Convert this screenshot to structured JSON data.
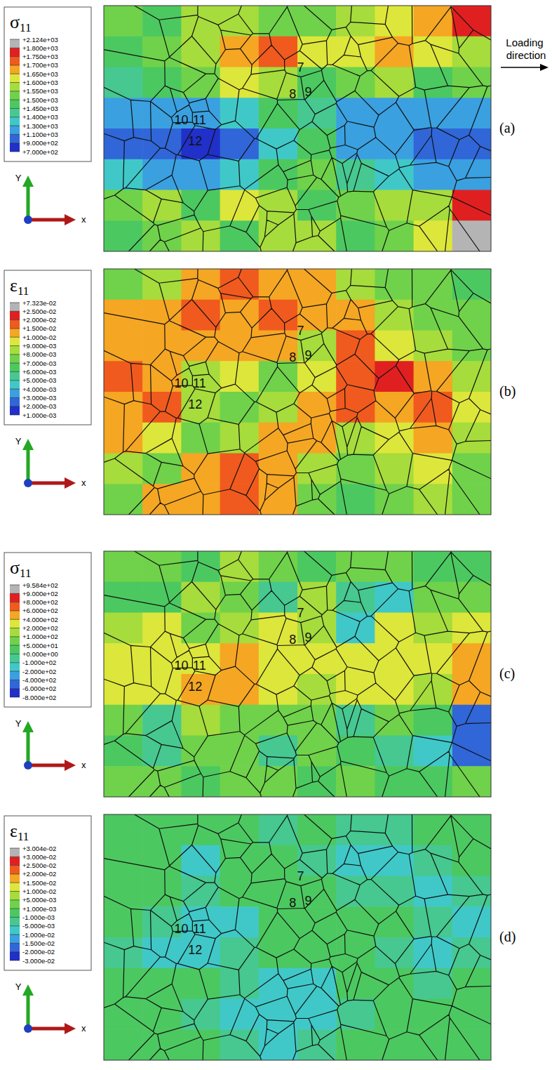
{
  "chart_data": [
    {
      "type": "heatmap",
      "panel": "(a)",
      "title": "σ11",
      "xlabel": "x",
      "ylabel": "Y",
      "annotation": "Loading direction",
      "grain_labels": [
        "7",
        "8",
        "9",
        "10",
        "11",
        "12"
      ],
      "cells": [
        [
          1550,
          1480,
          1580,
          1560,
          1520,
          1550,
          1600,
          1620,
          1680,
          1760
        ],
        [
          1480,
          1520,
          1600,
          1700,
          1720,
          1650,
          1650,
          1700,
          1620,
          1600
        ],
        [
          1450,
          1480,
          1550,
          1650,
          1600,
          1480,
          1550,
          1600,
          1480,
          1520
        ],
        [
          1300,
          1200,
          1150,
          1400,
          1480,
          1450,
          1300,
          1250,
          1200,
          1150
        ],
        [
          1000,
          950,
          900,
          1000,
          1350,
          1480,
          1150,
          1200,
          1050,
          950
        ],
        [
          1350,
          1300,
          1200,
          1350,
          1480,
          1550,
          1450,
          1400,
          1300,
          1250
        ],
        [
          1550,
          1600,
          1490,
          1650,
          1580,
          1480,
          1550,
          1580,
          1600,
          1800
        ],
        [
          1480,
          1550,
          1600,
          1490,
          1560,
          1600,
          1480,
          1550,
          1620,
          1850
        ]
      ],
      "colorbar": {
        "range": [
          700,
          2124
        ],
        "ticks": [
          {
            "value": 2124,
            "label": "+2.124e+03"
          },
          {
            "value": 1800,
            "label": "+1.800e+03"
          },
          {
            "value": 1750,
            "label": "+1.750e+03"
          },
          {
            "value": 1700,
            "label": "+1.700e+03"
          },
          {
            "value": 1650,
            "label": "+1.650e+03"
          },
          {
            "value": 1600,
            "label": "+1.600e+03"
          },
          {
            "value": 1550,
            "label": "+1.550e+03"
          },
          {
            "value": 1500,
            "label": "+1.500e+03"
          },
          {
            "value": 1450,
            "label": "+1.450e+03"
          },
          {
            "value": 1400,
            "label": "+1.400e+03"
          },
          {
            "value": 1300,
            "label": "+1.300e+03"
          },
          {
            "value": 1100,
            "label": "+1.100e+03"
          },
          {
            "value": 900,
            "label": "+9.000e+02"
          },
          {
            "value": 700,
            "label": "+7.000e+02"
          }
        ]
      }
    },
    {
      "type": "heatmap",
      "panel": "(b)",
      "title": "ε11",
      "xlabel": "x",
      "ylabel": "Y",
      "grain_labels": [
        "7",
        "8",
        "9",
        "10",
        "11",
        "12"
      ],
      "cells": [
        [
          0.008,
          0.009,
          0.012,
          0.016,
          0.012,
          0.011,
          0.009,
          0.008,
          0.008,
          0.007
        ],
        [
          0.012,
          0.014,
          0.016,
          0.012,
          0.017,
          0.012,
          0.011,
          0.009,
          0.008,
          0.008
        ],
        [
          0.014,
          0.012,
          0.011,
          0.015,
          0.012,
          0.009,
          0.016,
          0.01,
          0.009,
          0.008
        ],
        [
          0.016,
          0.015,
          0.009,
          0.01,
          0.008,
          0.01,
          0.018,
          0.022,
          0.012,
          0.009
        ],
        [
          0.015,
          0.018,
          0.009,
          0.008,
          0.009,
          0.011,
          0.016,
          0.014,
          0.016,
          0.01
        ],
        [
          0.011,
          0.01,
          0.008,
          0.009,
          0.012,
          0.013,
          0.009,
          0.01,
          0.011,
          0.009
        ],
        [
          0.009,
          0.008,
          0.012,
          0.016,
          0.014,
          0.009,
          0.008,
          0.009,
          0.01,
          0.008
        ],
        [
          0.008,
          0.011,
          0.013,
          0.018,
          0.012,
          0.008,
          0.007,
          0.008,
          0.009,
          0.008
        ]
      ],
      "colorbar": {
        "range": [
          0.001,
          0.07323
        ],
        "ticks": [
          {
            "value": 0.07323,
            "label": "+7.323e-02"
          },
          {
            "value": 0.025,
            "label": "+2.500e-02"
          },
          {
            "value": 0.02,
            "label": "+2.000e-02"
          },
          {
            "value": 0.015,
            "label": "+1.500e-02"
          },
          {
            "value": 0.01,
            "label": "+1.000e-02"
          },
          {
            "value": 0.009,
            "label": "+9.000e-03"
          },
          {
            "value": 0.008,
            "label": "+8.000e-03"
          },
          {
            "value": 0.007,
            "label": "+7.000e-03"
          },
          {
            "value": 0.006,
            "label": "+6.000e-03"
          },
          {
            "value": 0.005,
            "label": "+5.000e-03"
          },
          {
            "value": 0.004,
            "label": "+4.000e-03"
          },
          {
            "value": 0.003,
            "label": "+3.000e-03"
          },
          {
            "value": 0.002,
            "label": "+2.000e-03"
          },
          {
            "value": 0.001,
            "label": "+1.000e-03"
          }
        ]
      }
    },
    {
      "type": "heatmap",
      "panel": "(c)",
      "title": "σ11",
      "xlabel": "x",
      "ylabel": "Y",
      "grain_labels": [
        "7",
        "8",
        "9",
        "10",
        "11",
        "12"
      ],
      "cells": [
        [
          60,
          80,
          40,
          120,
          60,
          30,
          80,
          60,
          20,
          40
        ],
        [
          40,
          30,
          120,
          80,
          -50,
          150,
          -20,
          -120,
          60,
          80
        ],
        [
          200,
          250,
          100,
          150,
          250,
          150,
          -150,
          250,
          200,
          300
        ],
        [
          300,
          350,
          220,
          500,
          300,
          250,
          350,
          300,
          250,
          450
        ],
        [
          250,
          300,
          450,
          550,
          300,
          200,
          300,
          250,
          150,
          500
        ],
        [
          60,
          -50,
          150,
          100,
          60,
          80,
          -20,
          100,
          50,
          -400
        ],
        [
          40,
          -80,
          60,
          80,
          -20,
          60,
          50,
          -50,
          -100,
          -450
        ],
        [
          60,
          80,
          40,
          60,
          80,
          20,
          60,
          40,
          30,
          60
        ]
      ],
      "colorbar": {
        "range": [
          -800,
          958.4
        ],
        "ticks": [
          {
            "value": 958.4,
            "label": "+9.584e+02"
          },
          {
            "value": 900,
            "label": "+9.000e+02"
          },
          {
            "value": 800,
            "label": "+8.000e+02"
          },
          {
            "value": 600,
            "label": "+6.000e+02"
          },
          {
            "value": 400,
            "label": "+4.000e+02"
          },
          {
            "value": 200,
            "label": "+2.000e+02"
          },
          {
            "value": 100,
            "label": "+1.000e+02"
          },
          {
            "value": 50,
            "label": "+5.000e+01"
          },
          {
            "value": 0,
            "label": "+0.000e+00"
          },
          {
            "value": -100,
            "label": "-1.000e+02"
          },
          {
            "value": -200,
            "label": "-2.000e+02"
          },
          {
            "value": -400,
            "label": "-4.000e+02"
          },
          {
            "value": -600,
            "label": "-6.000e+02"
          },
          {
            "value": -800,
            "label": "-8.000e+02"
          }
        ]
      }
    },
    {
      "type": "heatmap",
      "panel": "(d)",
      "title": "ε11",
      "xlabel": "x",
      "ylabel": "Y",
      "grain_labels": [
        "7",
        "8",
        "9",
        "10",
        "11",
        "12"
      ],
      "cells": [
        [
          0.0005,
          0.0002,
          -0.0008,
          0.0003,
          -0.003,
          0.0004,
          -0.002,
          -0.004,
          0.0002,
          -0.0006
        ],
        [
          -0.0004,
          0.0006,
          -0.006,
          0.0002,
          0.0005,
          -0.002,
          -0.007,
          -0.008,
          -0.003,
          0.0003
        ],
        [
          0.0003,
          -0.0005,
          -0.004,
          0.0004,
          -0.0006,
          0.0002,
          -0.002,
          -0.004,
          -0.007,
          -0.003
        ],
        [
          0.0006,
          -0.003,
          -0.006,
          -0.007,
          0.0003,
          0.0005,
          -0.0004,
          0.0002,
          -0.002,
          -0.006
        ],
        [
          -0.002,
          -0.007,
          -0.008,
          -0.003,
          0.0004,
          -0.0005,
          0.0003,
          -0.004,
          -0.006,
          -0.003
        ],
        [
          0.0004,
          -0.0006,
          0.0002,
          -0.002,
          -0.006,
          -0.007,
          0.0005,
          -0.0003,
          -0.002,
          0.0004
        ],
        [
          -0.0005,
          0.0003,
          -0.004,
          -0.007,
          -0.008,
          -0.006,
          -0.003,
          0.0004,
          -0.0006,
          0.0002
        ],
        [
          0.0002,
          -0.0004,
          0.0005,
          -0.002,
          -0.006,
          -0.003,
          0.0003,
          -0.0002,
          0.0005,
          -0.0004
        ]
      ],
      "colorbar": {
        "range": [
          -0.03,
          0.03004
        ],
        "ticks": [
          {
            "value": 0.03004,
            "label": "+3.004e-02"
          },
          {
            "value": 0.03,
            "label": "+3.000e-02"
          },
          {
            "value": 0.025,
            "label": "+2.500e-02"
          },
          {
            "value": 0.02,
            "label": "+2.000e-02"
          },
          {
            "value": 0.015,
            "label": "+1.500e-02"
          },
          {
            "value": 0.01,
            "label": "+1.000e-02"
          },
          {
            "value": 0.005,
            "label": "+5.000e-03"
          },
          {
            "value": 0.001,
            "label": "+1.000e-03"
          },
          {
            "value": -0.001,
            "label": "-1.000e-03"
          },
          {
            "value": -0.005,
            "label": "-5.000e-03"
          },
          {
            "value": -0.01,
            "label": "-1.000e-02"
          },
          {
            "value": -0.015,
            "label": "-1.500e-02"
          },
          {
            "value": -0.02,
            "label": "-2.000e-02"
          },
          {
            "value": -0.03,
            "label": "-3.000e-02"
          }
        ]
      }
    }
  ]
}
